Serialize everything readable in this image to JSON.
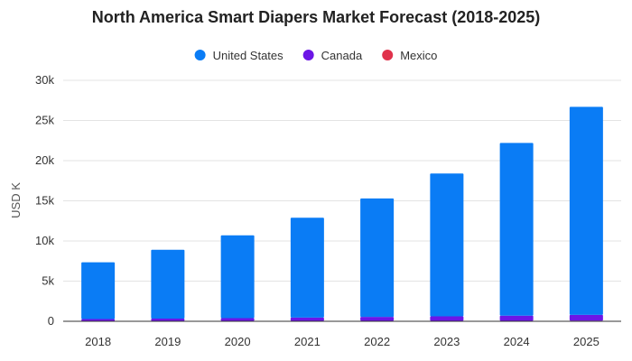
{
  "chart_data": {
    "type": "bar",
    "stacked": true,
    "title": "North America Smart Diapers Market Forecast (2018-2025)",
    "xlabel": "",
    "ylabel": "USD K",
    "ylim": [
      0,
      30000
    ],
    "yticks": [
      0,
      5000,
      10000,
      15000,
      20000,
      25000,
      30000
    ],
    "ytick_labels": [
      "0",
      "5k",
      "10k",
      "15k",
      "20k",
      "25k",
      "30k"
    ],
    "categories": [
      "2018",
      "2019",
      "2020",
      "2021",
      "2022",
      "2023",
      "2024",
      "2025"
    ],
    "legend_position": "top-center",
    "grid": true,
    "series": [
      {
        "name": "Mexico",
        "color": "#e0324b",
        "values": [
          30,
          35,
          40,
          45,
          50,
          55,
          60,
          70
        ]
      },
      {
        "name": "Canada",
        "color": "#6c16e6",
        "values": [
          250,
          300,
          360,
          420,
          500,
          560,
          640,
          730
        ]
      },
      {
        "name": "United States",
        "color": "#0a7cf5",
        "values": [
          7070,
          8565,
          10300,
          12435,
          14750,
          17785,
          21500,
          25900
        ]
      }
    ],
    "legend_order": [
      "United States",
      "Canada",
      "Mexico"
    ]
  }
}
